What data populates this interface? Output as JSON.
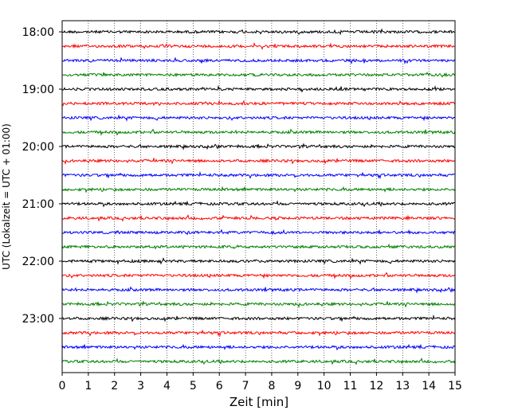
{
  "chart_data": {
    "type": "line",
    "title": "",
    "xlabel": "Zeit  [min]",
    "ylabel": "UTC (Lokalzeit = UTC + 01:00)",
    "xlim": [
      0,
      15
    ],
    "x_ticks": [
      0,
      1,
      2,
      3,
      4,
      5,
      6,
      7,
      8,
      9,
      10,
      11,
      12,
      13,
      14,
      15
    ],
    "y_ticks": [
      "18:00",
      "19:00",
      "20:00",
      "21:00",
      "22:00",
      "23:00"
    ],
    "grid": {
      "x": true,
      "style": "dotted"
    },
    "trace_interval_min": 15,
    "trace_start": "18:00",
    "trace_end": "23:45",
    "trace_count": 24,
    "trace_color_cycle": [
      "#000000",
      "#ff0000",
      "#0000ff",
      "#008000"
    ]
  }
}
